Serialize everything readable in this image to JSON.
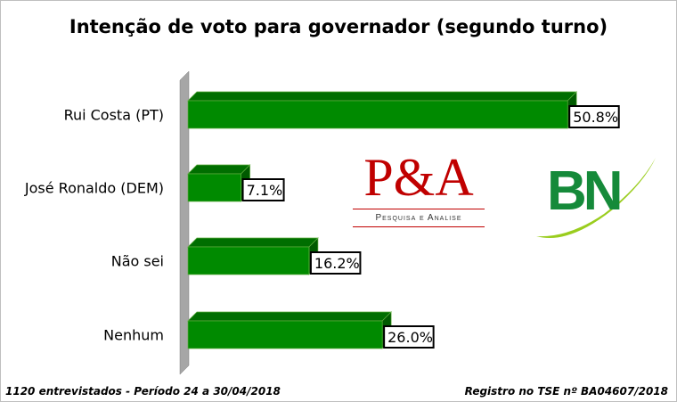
{
  "chart_data": {
    "type": "bar",
    "orientation": "horizontal",
    "title": "Intenção de voto para governador (segundo turno)",
    "categories": [
      "Rui Costa (PT)",
      "José Ronaldo (DEM)",
      "Não sei",
      "Nenhum"
    ],
    "values": [
      50.8,
      7.1,
      16.2,
      26.0
    ],
    "value_labels": [
      "50.8%",
      "7.1%",
      "16.2%",
      "26.0%"
    ],
    "unit": "%",
    "xlim": [
      0,
      52
    ],
    "grid": false,
    "bar_color": "#008a00",
    "xlabel": "",
    "ylabel": ""
  },
  "footer": {
    "left": "1120 entrevistados - Período 24 a 30/04/2018",
    "right": "Registro no TSE nº BA04607/2018"
  },
  "logos": {
    "pa_main": "P&A",
    "pa_sub": "Pesquisa e Analise",
    "bn": "BN"
  }
}
